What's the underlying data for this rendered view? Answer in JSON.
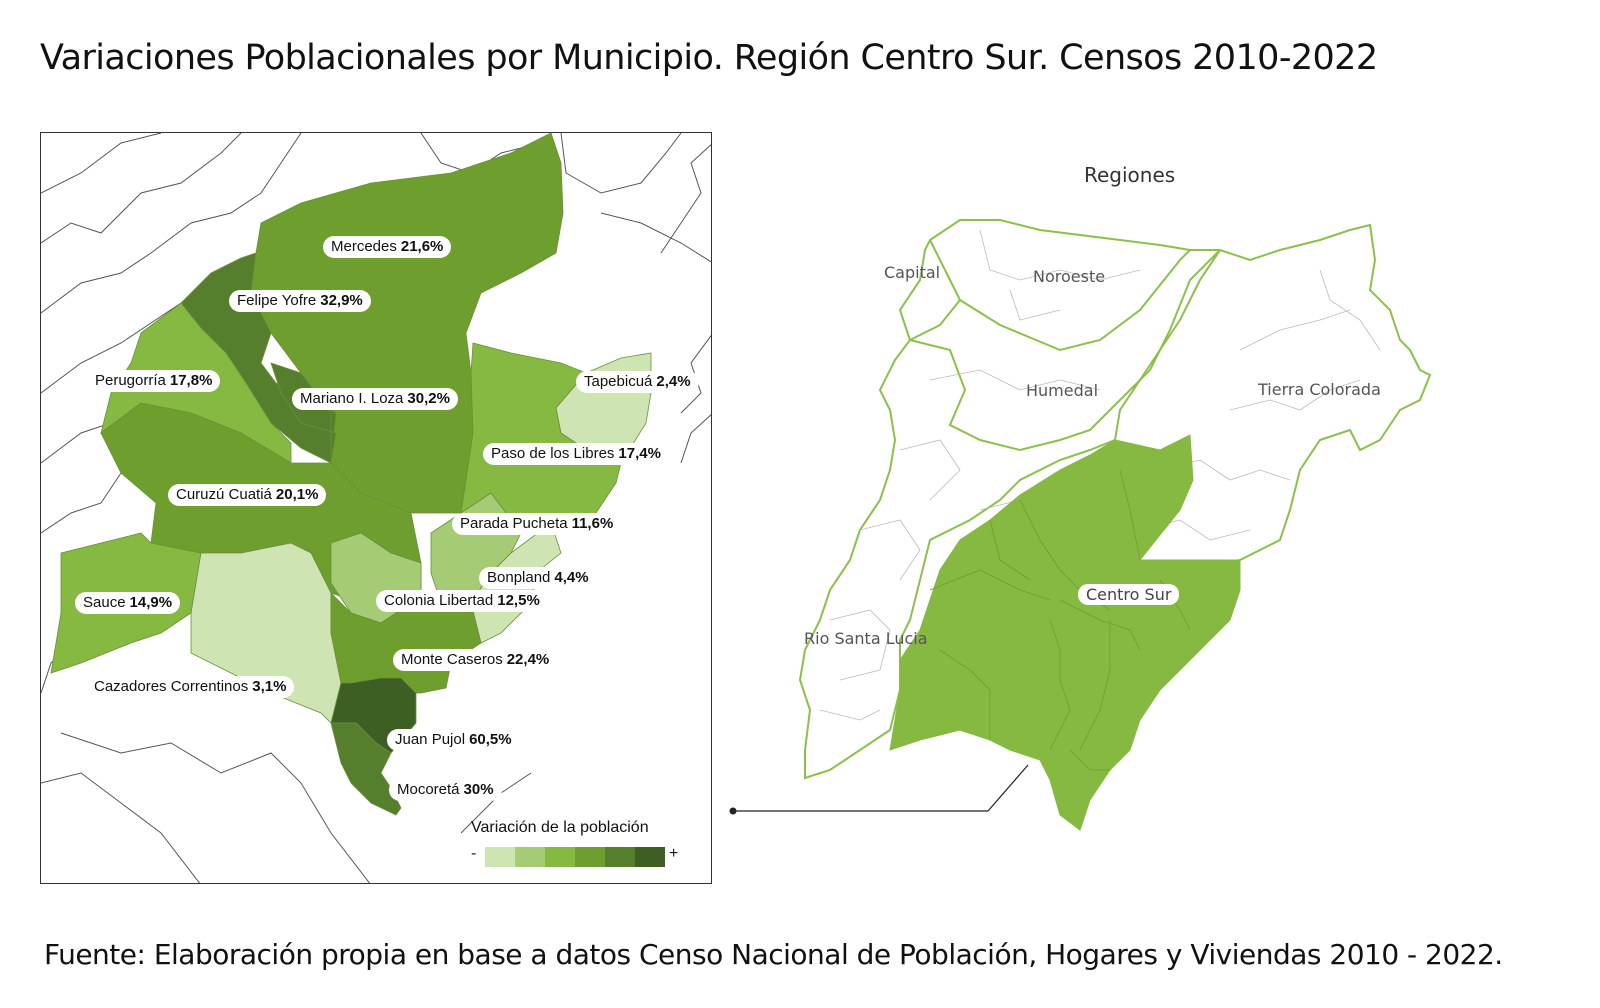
{
  "title": "Variaciones Poblacionales por Municipio. Región Centro Sur. Censos 2010-2022",
  "source": "Fuente: Elaboración propia en base a datos Censo Nacional de Población, Hogares y Viviendas 2010 - 2022.",
  "colors": {
    "class1": "#cfe4b3",
    "class2": "#a5cc74",
    "class3": "#86b941",
    "class4": "#6e9e2e",
    "class5": "#567f2d",
    "class6": "#3d5f24",
    "region_fill": "#86b941",
    "region_outline": "#8cc04a"
  },
  "municipios": [
    {
      "name": "Mercedes",
      "value": "21,6%"
    },
    {
      "name": "Felipe Yofre",
      "value": "32,9%"
    },
    {
      "name": "Perugorría",
      "value": "17,8%"
    },
    {
      "name": "Mariano I. Loza",
      "value": "30,2%"
    },
    {
      "name": "Tapebicuá",
      "value": "2,4%"
    },
    {
      "name": "Paso de los Libres",
      "value": "17,4%"
    },
    {
      "name": "Curuzú Cuatiá",
      "value": "20,1%"
    },
    {
      "name": "Parada Pucheta",
      "value": "11,6%"
    },
    {
      "name": "Bonpland",
      "value": "4,4%"
    },
    {
      "name": "Sauce",
      "value": "14,9%"
    },
    {
      "name": "Colonia Libertad",
      "value": "12,5%"
    },
    {
      "name": "Monte Caseros",
      "value": "22,4%"
    },
    {
      "name": "Cazadores Correntinos",
      "value": "3,1%"
    },
    {
      "name": "Juan Pujol",
      "value": "60,5%"
    },
    {
      "name": "Mocoretá",
      "value": "30%"
    }
  ],
  "legend": {
    "title": "Variación de la población",
    "min_label": "-",
    "max_label": "+"
  },
  "regions": {
    "title": "Regiones",
    "items": [
      "Capital",
      "Noroeste",
      "Humedal",
      "Tierra Colorada",
      "Centro Sur",
      "Rio Santa Lucia"
    ]
  }
}
